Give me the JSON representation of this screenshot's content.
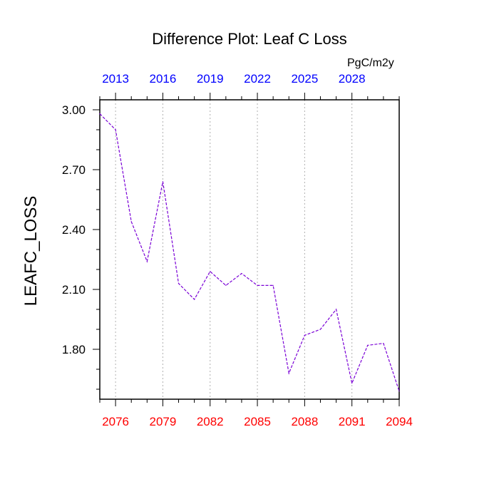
{
  "chart_data": {
    "type": "line",
    "title": "Difference Plot: Leaf C Loss",
    "units": "PgC/m2y",
    "ylabel": "LEAFC_LOSS",
    "xlabel": "",
    "x": [
      2075,
      2076,
      2077,
      2078,
      2079,
      2080,
      2081,
      2082,
      2083,
      2084,
      2085,
      2086,
      2087,
      2088,
      2089,
      2090,
      2091,
      2092,
      2093,
      2094
    ],
    "series": [
      {
        "values": [
          2.98,
          2.9,
          2.44,
          2.24,
          2.64,
          2.13,
          2.05,
          2.19,
          2.12,
          2.18,
          2.12,
          2.12,
          1.68,
          1.87,
          1.9,
          2.0,
          1.63,
          1.82,
          1.83,
          1.59
        ],
        "color": "#7a00d6",
        "line_style": "dashed"
      }
    ],
    "xlim": [
      2075,
      2094
    ],
    "ylim": [
      1.55,
      3.05
    ],
    "bottom_ticks": [
      "2076",
      "2079",
      "2082",
      "2085",
      "2088",
      "2091",
      "2094"
    ],
    "bottom_tick_color": "#ff0000",
    "top_ticks": [
      "2013",
      "2016",
      "2019",
      "2022",
      "2025",
      "2028"
    ],
    "top_tick_color": "#0000ff",
    "y_ticks": [
      "3.00",
      "2.70",
      "2.40",
      "2.10",
      "1.80"
    ],
    "grid": "vertical dotted lines at bottom tick positions",
    "legend": "none"
  }
}
